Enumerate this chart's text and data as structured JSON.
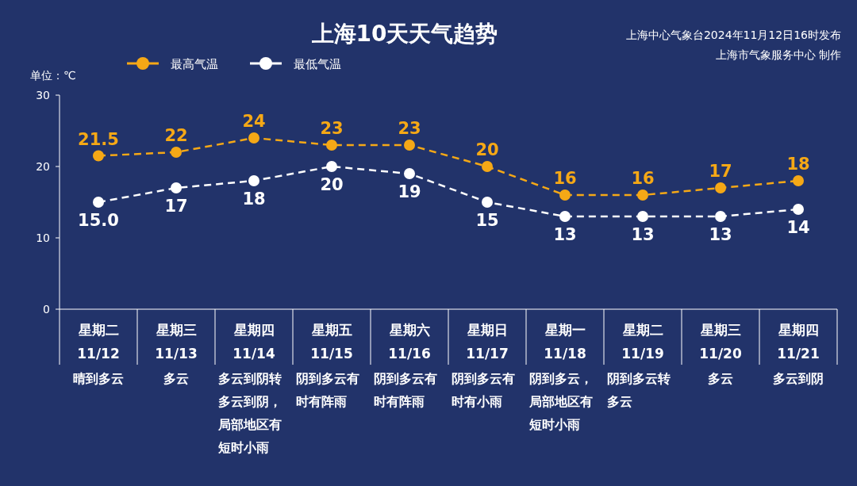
{
  "chart_data": {
    "type": "line",
    "title": "上海10天天气趋势",
    "ylabel": "单位：℃",
    "categories": [
      "星期二\n11/12",
      "星期三\n11/13",
      "星期四\n11/14",
      "星期五\n11/15",
      "星期六\n11/16",
      "星期日\n11/17",
      "星期一\n11/18",
      "星期二\n11/19",
      "星期三\n11/20",
      "星期四\n11/21"
    ],
    "series": [
      {
        "name": "最高气温",
        "color": "#f5a816",
        "values": [
          21.5,
          22,
          24,
          23,
          23,
          20,
          16,
          16,
          17,
          18
        ],
        "value_labels": [
          "21.5",
          "22",
          "24",
          "23",
          "23",
          "20",
          "16",
          "16",
          "17",
          "18"
        ]
      },
      {
        "name": "最低气温",
        "color": "#ffffff",
        "values": [
          15.0,
          17,
          18,
          20,
          19,
          15,
          13,
          13,
          13,
          14
        ],
        "value_labels": [
          "15.0",
          "17",
          "18",
          "20",
          "19",
          "15",
          "13",
          "13",
          "13",
          "14"
        ]
      }
    ],
    "ylim": [
      0,
      30
    ],
    "yticks": [
      0,
      10,
      20,
      30
    ],
    "grid": false,
    "legend": "top",
    "marker": "circle",
    "line_style": "dashed",
    "annotations": [
      "上海中心气象台2024年11月12日16时发布",
      "上海市气象服务中心 制作",
      "晴到多云",
      "多云",
      "多云到阴转多云到阴，局部地区有短时小雨",
      "阴到多云有时有阵雨",
      "阴到多云有时有阵雨",
      "阴到多云有时有小雨",
      "阴到多云，局部地区有短时小雨",
      "阴到多云转多云",
      "多云",
      "多云到阴"
    ]
  }
}
